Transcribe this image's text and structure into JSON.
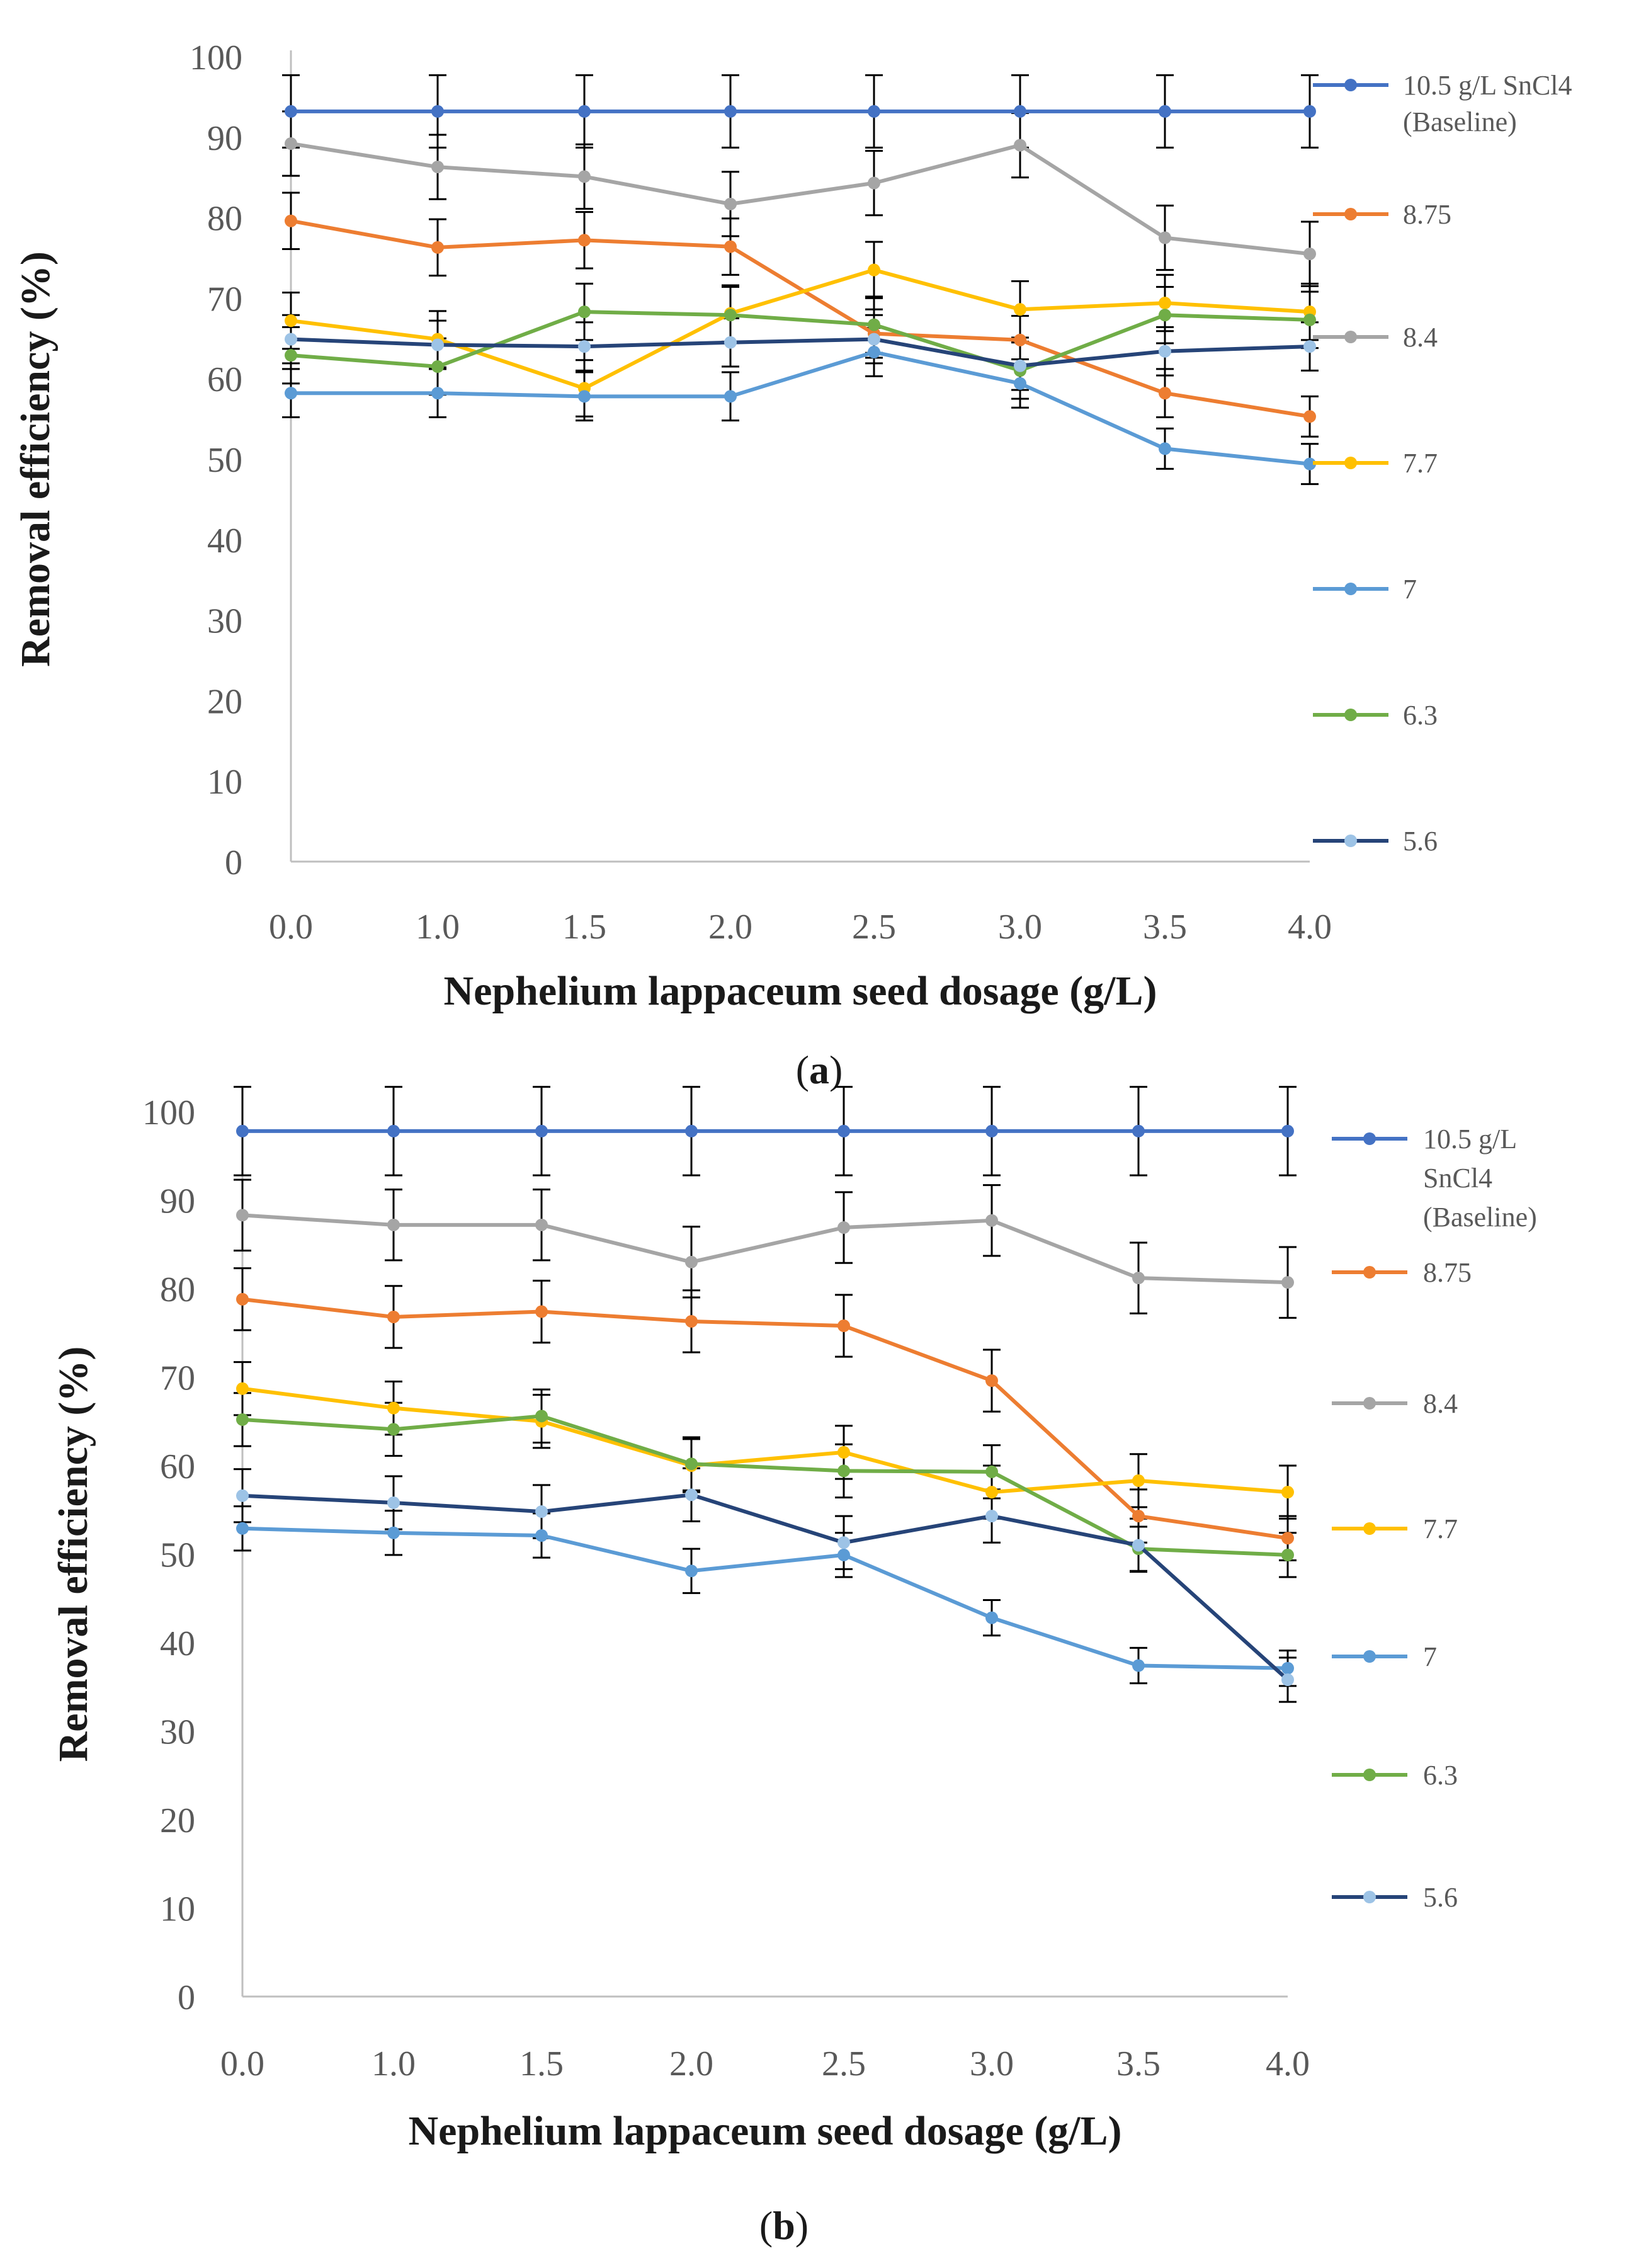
{
  "chart_data": [
    {
      "type": "line",
      "panel_label": "a",
      "xlabel": "Nephelium lappaceum seed dosage (g/L)",
      "ylabel": "Removal efficiency (%)",
      "ylim": [
        0,
        100
      ],
      "yticks": [
        "0",
        "10",
        "20",
        "30",
        "40",
        "50",
        "60",
        "70",
        "80",
        "90",
        "100"
      ],
      "categories": [
        "0.0",
        "1.0",
        "1.5",
        "2.0",
        "2.5",
        "3.0",
        "3.5",
        "4.0"
      ],
      "legend_position": "right",
      "series": [
        {
          "name": "10.5 g/L SnCl4 (Baseline)",
          "legend_lines": [
            "10.5 g/L SnCl4",
            "(Baseline)"
          ],
          "color": "#4472C4",
          "values": [
            93.2,
            93.2,
            93.2,
            93.2,
            93.2,
            93.2,
            93.2,
            93.2
          ],
          "errors": [
            4.5,
            4.5,
            4.5,
            4.5,
            4.5,
            4.5,
            4.5,
            4.5
          ]
        },
        {
          "name": "8.75",
          "legend_lines": [
            "8.75"
          ],
          "color": "#ED7D31",
          "values": [
            79.6,
            76.3,
            77.2,
            76.4,
            65.6,
            64.8,
            58.2,
            55.3
          ],
          "errors": [
            3.5,
            3.5,
            3.5,
            3.5,
            3.0,
            3.0,
            3.0,
            2.5
          ]
        },
        {
          "name": "8.4",
          "legend_lines": [
            "8.4"
          ],
          "color": "#A5A5A5",
          "values": [
            89.2,
            86.3,
            85.1,
            81.7,
            84.3,
            89.0,
            77.5,
            75.5
          ],
          "errors": [
            4.0,
            4.0,
            4.0,
            4.0,
            4.0,
            4.0,
            4.0,
            4.0
          ]
        },
        {
          "name": "7.7",
          "legend_lines": [
            "7.7"
          ],
          "color": "#FFC000",
          "values": [
            67.2,
            64.9,
            58.8,
            68.1,
            73.5,
            68.6,
            69.4,
            68.3
          ],
          "errors": [
            3.5,
            3.5,
            3.5,
            3.5,
            3.5,
            3.5,
            3.5,
            3.5
          ]
        },
        {
          "name": "7",
          "legend_lines": [
            "7"
          ],
          "color": "#5B9BD5",
          "values": [
            58.2,
            58.2,
            57.8,
            57.8,
            63.3,
            59.4,
            51.3,
            49.4
          ],
          "errors": [
            3.0,
            3.0,
            3.0,
            3.0,
            3.0,
            3.0,
            2.5,
            2.5
          ]
        },
        {
          "name": "6.3",
          "legend_lines": [
            "6.3"
          ],
          "color": "#70AD47",
          "values": [
            62.9,
            61.5,
            68.3,
            67.9,
            66.7,
            61.0,
            67.9,
            67.3
          ],
          "errors": [
            3.5,
            3.5,
            3.5,
            3.5,
            3.5,
            3.5,
            3.5,
            3.5
          ]
        },
        {
          "name": "5.6",
          "legend_lines": [
            "5.6"
          ],
          "color": "#264478",
          "marker": "#9DC3E6",
          "values": [
            64.9,
            64.2,
            64.0,
            64.5,
            64.9,
            61.6,
            63.4,
            64.0
          ],
          "errors": [
            3.0,
            3.0,
            3.0,
            3.0,
            3.0,
            3.0,
            3.0,
            3.0
          ]
        }
      ]
    },
    {
      "type": "line",
      "panel_label": "b",
      "xlabel": "Nephelium lappaceum seed dosage (g/L)",
      "ylabel": "Removal efficiency (%)",
      "ylim": [
        0,
        100
      ],
      "yticks": [
        "0",
        "10",
        "20",
        "30",
        "40",
        "50",
        "60",
        "70",
        "80",
        "90",
        "100"
      ],
      "categories": [
        "0.0",
        "1.0",
        "1.5",
        "2.0",
        "2.5",
        "3.0",
        "3.5",
        "4.0"
      ],
      "legend_position": "right",
      "series": [
        {
          "name": "10.5 g/L SnCl4 (Baseline)",
          "legend_lines": [
            "10.5 g/L",
            "SnCl4",
            "(Baseline)"
          ],
          "color": "#4472C4",
          "values": [
            97.8,
            97.8,
            97.8,
            97.8,
            97.8,
            97.8,
            97.8,
            97.8
          ],
          "errors": [
            5.0,
            5.0,
            5.0,
            5.0,
            5.0,
            5.0,
            5.0,
            5.0
          ]
        },
        {
          "name": "8.75",
          "legend_lines": [
            "8.75"
          ],
          "color": "#ED7D31",
          "values": [
            78.8,
            76.8,
            77.4,
            76.3,
            75.8,
            69.6,
            54.3,
            51.8
          ],
          "errors": [
            3.5,
            3.5,
            3.5,
            3.5,
            3.5,
            3.5,
            3.0,
            2.5
          ]
        },
        {
          "name": "8.4",
          "legend_lines": [
            "8.4"
          ],
          "color": "#A5A5A5",
          "values": [
            88.3,
            87.2,
            87.2,
            83.0,
            86.9,
            87.7,
            81.2,
            80.7
          ],
          "errors": [
            4.0,
            4.0,
            4.0,
            4.0,
            4.0,
            4.0,
            4.0,
            4.0
          ]
        },
        {
          "name": "7.7",
          "legend_lines": [
            "7.7"
          ],
          "color": "#FFC000",
          "values": [
            68.7,
            66.5,
            65.0,
            60.0,
            61.5,
            57.0,
            58.3,
            57.0
          ],
          "errors": [
            3.0,
            3.0,
            3.0,
            3.0,
            3.0,
            3.0,
            3.0,
            3.0
          ]
        },
        {
          "name": "7",
          "legend_lines": [
            "7"
          ],
          "color": "#5B9BD5",
          "values": [
            52.9,
            52.4,
            52.1,
            48.1,
            49.9,
            42.8,
            37.4,
            37.1
          ],
          "errors": [
            2.5,
            2.5,
            2.5,
            2.5,
            2.5,
            2.0,
            2.0,
            2.0
          ]
        },
        {
          "name": "6.3",
          "legend_lines": [
            "6.3"
          ],
          "color": "#70AD47",
          "values": [
            65.2,
            64.1,
            65.6,
            60.2,
            59.4,
            59.3,
            50.6,
            49.9
          ],
          "errors": [
            3.0,
            3.0,
            3.0,
            3.0,
            3.0,
            3.0,
            2.5,
            2.5
          ]
        },
        {
          "name": "5.6",
          "legend_lines": [
            "5.6"
          ],
          "color": "#264478",
          "marker": "#9DC3E6",
          "values": [
            56.6,
            55.8,
            54.8,
            56.7,
            51.3,
            54.3,
            51.0,
            35.8
          ],
          "errors": [
            3.0,
            3.0,
            3.0,
            3.0,
            3.0,
            3.0,
            3.0,
            2.5
          ]
        }
      ]
    }
  ]
}
